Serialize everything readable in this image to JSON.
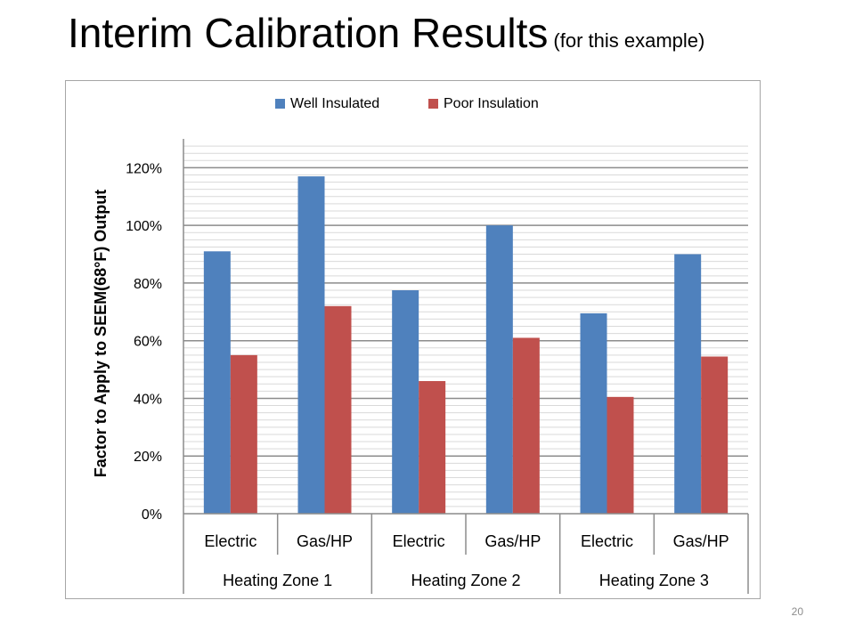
{
  "slide": {
    "title": "Interim Calibration Results",
    "subtitle": "(for this example)",
    "page_number": "20"
  },
  "chart_data": {
    "type": "bar",
    "ylabel": "Factor to Apply to SEEM(68°F) Output",
    "ylim": [
      0,
      1.3
    ],
    "yticks": [
      {
        "value": 0,
        "label": "0%"
      },
      {
        "value": 0.2,
        "label": "20%"
      },
      {
        "value": 0.4,
        "label": "40%"
      },
      {
        "value": 0.6,
        "label": "60%"
      },
      {
        "value": 0.8,
        "label": "80%"
      },
      {
        "value": 1.0,
        "label": "100%"
      },
      {
        "value": 1.2,
        "label": "120%"
      }
    ],
    "categories": [
      "Electric",
      "Gas/HP",
      "Electric",
      "Gas/HP",
      "Electric",
      "Gas/HP"
    ],
    "groups": [
      {
        "label": "Heating Zone 1",
        "span": 2
      },
      {
        "label": "Heating Zone 2",
        "span": 2
      },
      {
        "label": "Heating Zone 3",
        "span": 2
      }
    ],
    "series": [
      {
        "name": "Well Insulated",
        "color": "#4f81bd",
        "values": [
          0.91,
          1.17,
          0.775,
          1.0,
          0.695,
          0.9
        ]
      },
      {
        "name": "Poor Insulation",
        "color": "#c0504d",
        "values": [
          0.55,
          0.72,
          0.46,
          0.61,
          0.405,
          0.545
        ]
      }
    ],
    "grid": true,
    "legend": "top"
  }
}
